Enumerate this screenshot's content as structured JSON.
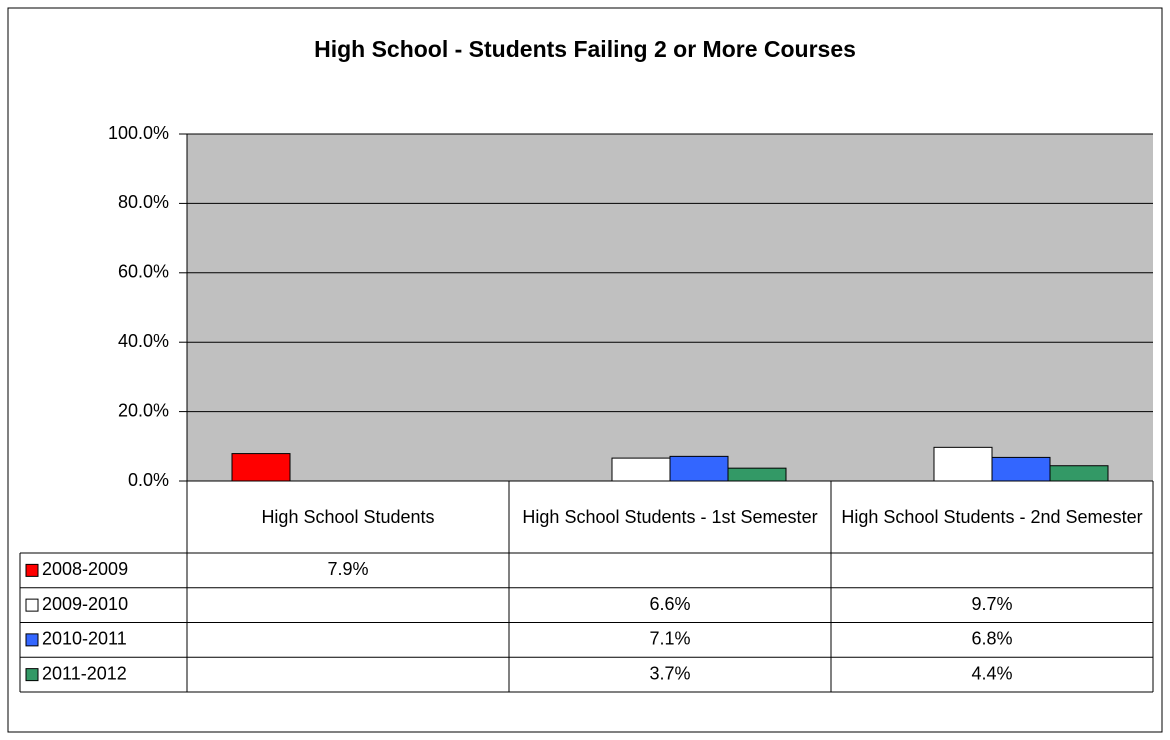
{
  "chart_data": {
    "type": "bar",
    "title": "High School - Students Failing 2 or More Courses",
    "categories": [
      "High School Students",
      "High School Students - 1st Semester",
      "High School Students - 2nd Semester"
    ],
    "series": [
      {
        "name": "2008-2009",
        "color": "#ff0000",
        "values": [
          7.9,
          null,
          null
        ],
        "value_labels": [
          "7.9%",
          null,
          null
        ]
      },
      {
        "name": "2009-2010",
        "color": "#ffffff",
        "values": [
          null,
          6.6,
          9.7
        ],
        "value_labels": [
          null,
          "6.6%",
          "9.7%"
        ]
      },
      {
        "name": "2010-2011",
        "color": "#3366ff",
        "values": [
          null,
          7.1,
          6.8
        ],
        "value_labels": [
          null,
          "7.1%",
          "6.8%"
        ]
      },
      {
        "name": "2011-2012",
        "color": "#339966",
        "values": [
          null,
          3.7,
          4.4
        ],
        "value_labels": [
          null,
          "3.7%",
          "4.4%"
        ]
      }
    ],
    "ylim": [
      0,
      100
    ],
    "yticks": [
      {
        "value": 0,
        "label": "0.0%"
      },
      {
        "value": 20,
        "label": "20.0%"
      },
      {
        "value": 40,
        "label": "40.0%"
      },
      {
        "value": 60,
        "label": "60.0%"
      },
      {
        "value": 80,
        "label": "80.0%"
      },
      {
        "value": 100,
        "label": "100.0%"
      }
    ],
    "grid": true,
    "plot_background": "#c0c0c0"
  }
}
